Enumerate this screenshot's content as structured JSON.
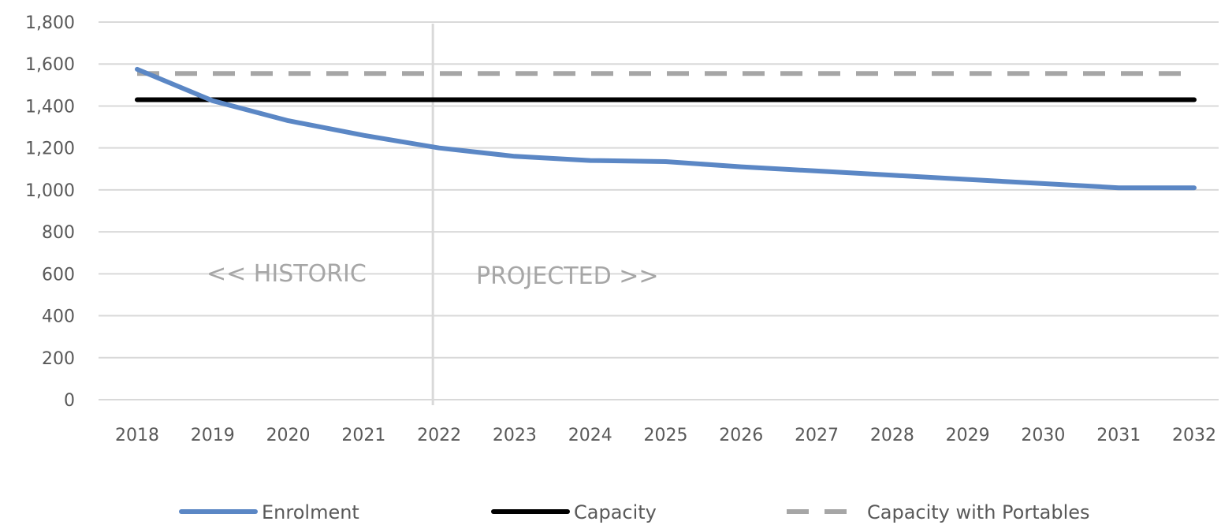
{
  "chart_data": {
    "type": "line",
    "title": "",
    "xlabel": "",
    "ylabel": "",
    "x": [
      "2018",
      "2019",
      "2020",
      "2021",
      "2022",
      "2023",
      "2024",
      "2025",
      "2026",
      "2027",
      "2028",
      "2029",
      "2030",
      "2031",
      "2032"
    ],
    "ylim": [
      0,
      1800
    ],
    "y_ticks": [
      "0",
      "200",
      "400",
      "600",
      "800",
      "1,000",
      "1,200",
      "1,400",
      "1,600",
      "1,800"
    ],
    "y_tick_values": [
      0,
      200,
      400,
      600,
      800,
      1000,
      1200,
      1400,
      1600,
      1800
    ],
    "grid": true,
    "legend_position": "bottom",
    "divider_between": [
      "2022"
    ],
    "annotations": {
      "historic": "<< HISTORIC",
      "projected": "PROJECTED >>"
    },
    "series": [
      {
        "name": "Enrolment",
        "color": "#5b87c5",
        "style": "solid",
        "values": [
          1575,
          1425,
          1330,
          1260,
          1200,
          1160,
          1140,
          1135,
          1110,
          1090,
          1070,
          1050,
          1030,
          1010,
          1010
        ]
      },
      {
        "name": "Capacity",
        "color": "#000000",
        "style": "solid",
        "values": [
          1430,
          1430,
          1430,
          1430,
          1430,
          1430,
          1430,
          1430,
          1430,
          1430,
          1430,
          1430,
          1430,
          1430,
          1430
        ]
      },
      {
        "name": "Capacity with Portables",
        "color": "#a6a6a6",
        "style": "dashed",
        "values": [
          1555,
          1555,
          1555,
          1555,
          1555,
          1555,
          1555,
          1555,
          1555,
          1555,
          1555,
          1555,
          1555,
          1555,
          1555
        ]
      }
    ]
  }
}
